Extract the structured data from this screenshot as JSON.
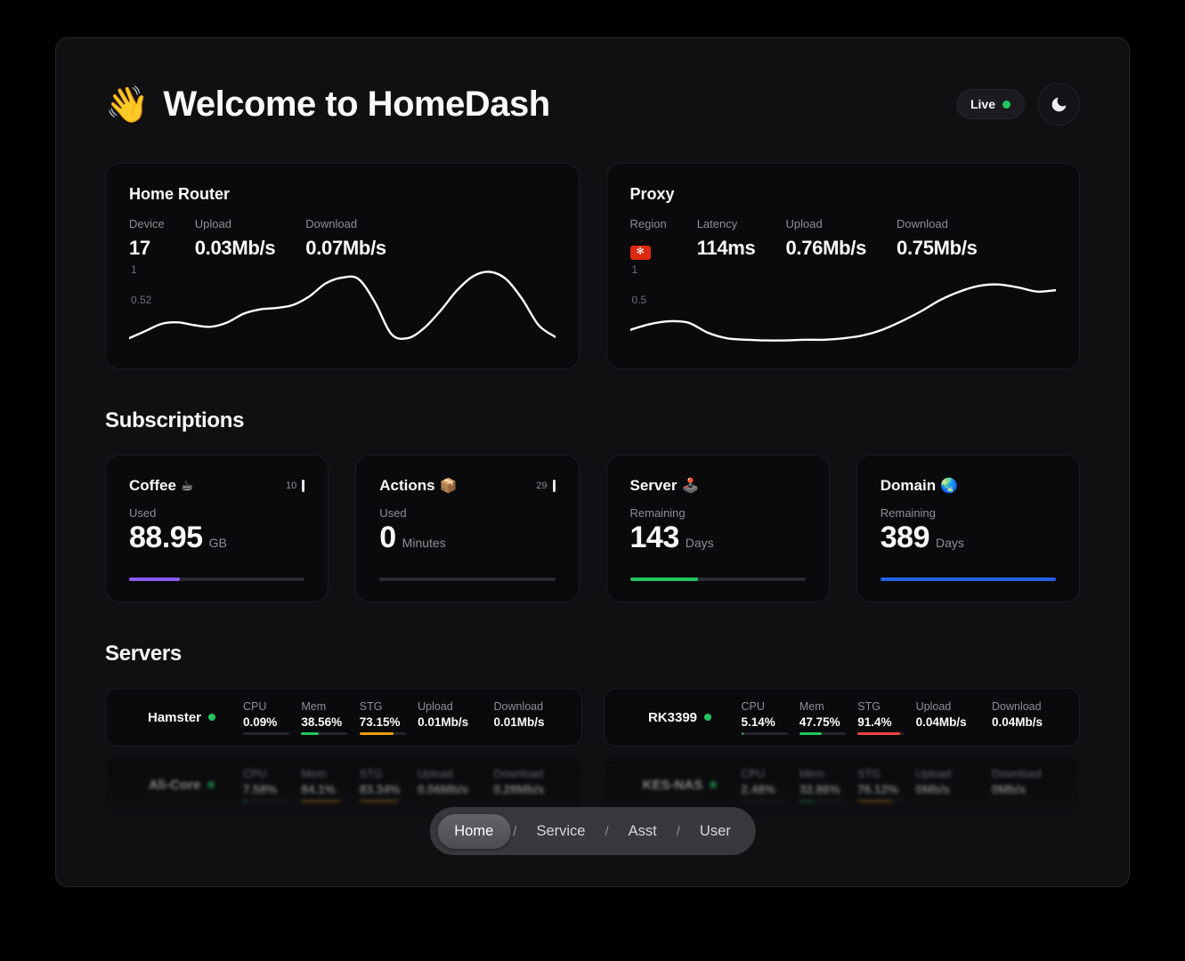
{
  "header": {
    "wave_emoji": "👋",
    "title": "Welcome to HomeDash",
    "live_label": "Live"
  },
  "network_cards": [
    {
      "title": "Home Router",
      "stats": [
        {
          "label": "Device",
          "value": "17"
        },
        {
          "label": "Upload",
          "value": "0.03Mb/s"
        },
        {
          "label": "Download",
          "value": "0.07Mb/s"
        }
      ]
    },
    {
      "title": "Proxy",
      "stats": [
        {
          "label": "Region",
          "value": "🇭🇰"
        },
        {
          "label": "Latency",
          "value": "114ms"
        },
        {
          "label": "Upload",
          "value": "0.76Mb/s"
        },
        {
          "label": "Download",
          "value": "0.75Mb/s"
        }
      ]
    }
  ],
  "icons": {
    "hk_flower": "✻"
  },
  "chart_data": [
    {
      "type": "line",
      "title": "Home Router traffic",
      "unit": "Mb/s",
      "y_range": [
        0.5,
        1.03
      ],
      "y_ticks": [
        "1",
        "0.52"
      ],
      "values": [
        0.53,
        0.58,
        0.63,
        0.64,
        0.62,
        0.61,
        0.64,
        0.7,
        0.73,
        0.74,
        0.76,
        0.82,
        0.91,
        0.95,
        0.94,
        0.78,
        0.56,
        0.53,
        0.6,
        0.72,
        0.86,
        0.96,
        0.99,
        0.94,
        0.8,
        0.62,
        0.54
      ]
    },
    {
      "type": "line",
      "title": "Proxy traffic",
      "unit": "Mb/s",
      "y_range": [
        0.48,
        1.02
      ],
      "y_ticks": [
        "1",
        "0.5"
      ],
      "values": [
        0.57,
        0.61,
        0.63,
        0.62,
        0.55,
        0.51,
        0.5,
        0.495,
        0.495,
        0.5,
        0.5,
        0.51,
        0.53,
        0.57,
        0.63,
        0.7,
        0.78,
        0.84,
        0.88,
        0.89,
        0.87,
        0.84,
        0.85
      ]
    }
  ],
  "subscriptions": {
    "section_title": "Subscriptions",
    "cards": [
      {
        "title": "Coffee",
        "icon": "☕",
        "badge": "10",
        "label": "Used",
        "value": "88.95",
        "unit": "GB",
        "progress": {
          "pct": 29,
          "color": "#8b5cf6"
        }
      },
      {
        "title": "Actions",
        "icon": "📦",
        "badge": "29",
        "label": "Used",
        "value": "0",
        "unit": "Minutes",
        "progress": {
          "pct": 0,
          "color": "#e4e4e7"
        }
      },
      {
        "title": "Server",
        "icon": "🕹️",
        "label": "Remaining",
        "value": "143",
        "unit": "Days",
        "progress": {
          "pct": 39,
          "color": "#22c55e"
        }
      },
      {
        "title": "Domain",
        "icon": "🌏",
        "label": "Remaining",
        "value": "389",
        "unit": "Days",
        "progress": {
          "pct": 100,
          "color": "#2563eb"
        }
      }
    ]
  },
  "servers": {
    "section_title": "Servers",
    "status_color": "#22c55e",
    "list": [
      {
        "name": "Hamster",
        "metrics": [
          {
            "label": "CPU",
            "value": "0.09%",
            "pct": 0.09,
            "color": "#22c55e"
          },
          {
            "label": "Mem",
            "value": "38.56%",
            "pct": 38.56,
            "color": "#22c55e"
          },
          {
            "label": "STG",
            "value": "73.15%",
            "pct": 73.15,
            "color": "#f59e0b"
          }
        ],
        "upload": {
          "label": "Upload",
          "value": "0.01Mb/s"
        },
        "download": {
          "label": "Download",
          "value": "0.01Mb/s"
        }
      },
      {
        "name": "RK3399",
        "metrics": [
          {
            "label": "CPU",
            "value": "5.14%",
            "pct": 5.14,
            "color": "#22c55e"
          },
          {
            "label": "Mem",
            "value": "47.75%",
            "pct": 47.75,
            "color": "#22c55e"
          },
          {
            "label": "STG",
            "value": "91.4%",
            "pct": 91.4,
            "color": "#ef4444"
          }
        ],
        "upload": {
          "label": "Upload",
          "value": "0.04Mb/s"
        },
        "download": {
          "label": "Download",
          "value": "0.04Mb/s"
        }
      },
      {
        "name": "Ali-Core",
        "metrics": [
          {
            "label": "CPU",
            "value": "7.58%",
            "pct": 7.58,
            "color": "#22c55e"
          },
          {
            "label": "Mem",
            "value": "84.1%",
            "pct": 84.1,
            "color": "#f59e0b"
          },
          {
            "label": "STG",
            "value": "83.34%",
            "pct": 83.34,
            "color": "#f59e0b"
          }
        ],
        "upload": {
          "label": "Upload",
          "value": "0.06Mb/s"
        },
        "download": {
          "label": "Download",
          "value": "0.28Mb/s"
        }
      },
      {
        "name": "KES-NAS",
        "metrics": [
          {
            "label": "CPU",
            "value": "2.48%",
            "pct": 2.48,
            "color": "#22c55e"
          },
          {
            "label": "Mem",
            "value": "32.86%",
            "pct": 32.86,
            "color": "#22c55e"
          },
          {
            "label": "STG",
            "value": "76.12%",
            "pct": 76.12,
            "color": "#f59e0b"
          }
        ],
        "upload": {
          "label": "Upload",
          "value": "0Mb/s"
        },
        "download": {
          "label": "Download",
          "value": "0Mb/s"
        }
      }
    ]
  },
  "nav": {
    "separator": "/",
    "items": [
      {
        "label": "Home",
        "active": true
      },
      {
        "label": "Service",
        "active": false
      },
      {
        "label": "Asst",
        "active": false
      },
      {
        "label": "User",
        "active": false
      }
    ]
  }
}
